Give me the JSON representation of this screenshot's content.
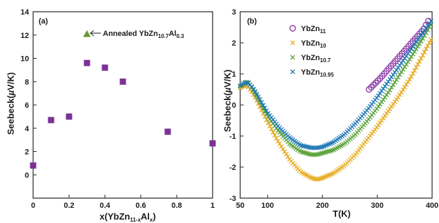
{
  "chart_data": [
    {
      "type": "scatter",
      "panel": "(a)",
      "title": "",
      "xlabel": "x(YbZn11-xAlx)",
      "ylabel": "Seebeck(µV/K)",
      "xlim": [
        0,
        1
      ],
      "ylim": [
        -2,
        14
      ],
      "xticks": [
        "0",
        "0.2",
        "0.4",
        "0.6",
        "0.8",
        "1"
      ],
      "yticks": [
        "0",
        "2",
        "4",
        "6",
        "8",
        "10",
        "12",
        "14"
      ],
      "grid": false,
      "series": [
        {
          "marker": "square",
          "color": "#7b3294",
          "x": [
            0,
            0.1,
            0.2,
            0.3,
            0.4,
            0.5,
            0.75,
            1.0
          ],
          "y": [
            0.8,
            4.7,
            5.0,
            9.6,
            9.2,
            8.0,
            3.7,
            2.7
          ]
        },
        {
          "marker": "triangle",
          "color": "#6a9a2e",
          "x": [
            0.3
          ],
          "y": [
            12.1
          ]
        }
      ],
      "annotation": "Annealed YbZn10.7Al0.3"
    },
    {
      "type": "scatter",
      "panel": "(b)",
      "title": "",
      "xlabel": "T(K)",
      "ylabel": "Seebeck(µV/K)",
      "xlim": [
        50,
        400
      ],
      "ylim": [
        -3,
        3
      ],
      "xticks": [
        "50",
        "100",
        "200",
        "300",
        "400"
      ],
      "yticks": [
        "-3",
        "-2",
        "-1",
        "0",
        "1",
        "2",
        "3"
      ],
      "grid": false,
      "legend_position": "top-left",
      "series": [
        {
          "name": "YbZn11",
          "marker": "circle",
          "color": "#8e3ea8",
          "T": [
            285,
            305,
            325,
            345,
            365,
            385,
            393
          ],
          "S": [
            0.5,
            0.85,
            1.25,
            1.65,
            2.05,
            2.45,
            2.7
          ]
        },
        {
          "name": "YbZn10",
          "marker": "x",
          "color": "#e6ac22",
          "T": [
            50,
            55,
            60,
            65,
            70,
            80,
            90,
            100,
            120,
            140,
            160,
            180,
            190,
            200,
            220,
            240,
            260,
            280,
            300,
            320,
            340,
            360,
            380,
            398
          ],
          "S": [
            0.55,
            0.6,
            0.62,
            0.58,
            0.45,
            0.15,
            -0.2,
            -0.55,
            -1.2,
            -1.75,
            -2.15,
            -2.35,
            -2.4,
            -2.35,
            -2.2,
            -1.95,
            -1.6,
            -1.15,
            -0.7,
            -0.2,
            0.3,
            0.85,
            1.5,
            2.1
          ]
        },
        {
          "name": "YbZn10.7",
          "marker": "x",
          "color": "#5aa33a",
          "T": [
            50,
            55,
            60,
            65,
            70,
            80,
            90,
            100,
            120,
            140,
            160,
            180,
            190,
            200,
            220,
            240,
            260,
            280,
            300,
            320,
            340,
            360,
            380,
            398
          ],
          "S": [
            0.6,
            0.65,
            0.75,
            0.72,
            0.6,
            0.3,
            -0.05,
            -0.35,
            -0.85,
            -1.25,
            -1.5,
            -1.6,
            -1.6,
            -1.55,
            -1.45,
            -1.25,
            -0.95,
            -0.55,
            -0.1,
            0.4,
            0.95,
            1.5,
            2.05,
            2.6
          ]
        },
        {
          "name": "YbZn10.95",
          "marker": "x",
          "color": "#1f78b4",
          "T": [
            50,
            55,
            60,
            65,
            70,
            80,
            90,
            100,
            120,
            140,
            160,
            180,
            190,
            200,
            220,
            240,
            260,
            280,
            300,
            320,
            340,
            360,
            380,
            398
          ],
          "S": [
            0.62,
            0.68,
            0.72,
            0.7,
            0.62,
            0.35,
            0.05,
            -0.25,
            -0.7,
            -1.05,
            -1.3,
            -1.38,
            -1.38,
            -1.35,
            -1.2,
            -0.95,
            -0.6,
            -0.2,
            0.25,
            0.75,
            1.25,
            1.75,
            2.25,
            2.7
          ]
        }
      ]
    }
  ]
}
